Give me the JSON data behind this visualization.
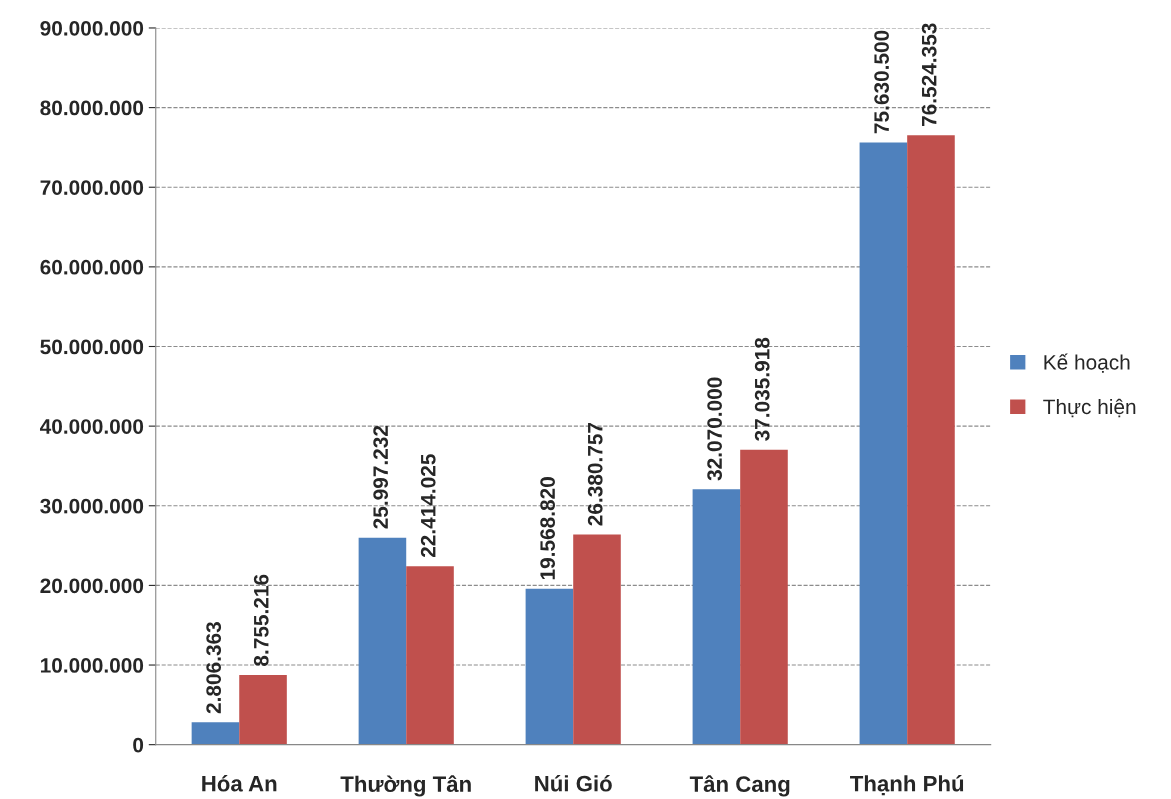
{
  "chart_data": {
    "type": "bar",
    "categories": [
      "Hóa An",
      "Thường Tân",
      "Núi Gió",
      "Tân Cang",
      "Thạnh Phú"
    ],
    "series": [
      {
        "name": "Kế hoạch",
        "color": "#4f81bd",
        "values": [
          2806363,
          25997232,
          19568820,
          32070000,
          75630500
        ],
        "value_labels": [
          "2.806.363",
          "25.997.232",
          "19.568.820",
          "32.070.000",
          "75.630.500"
        ]
      },
      {
        "name": "Thực hiện",
        "color": "#c0504d",
        "values": [
          8755216,
          22414025,
          26380757,
          37035918,
          76524353
        ],
        "value_labels": [
          "8.755.216",
          "22.414.025",
          "26.380.757",
          "37.035.918",
          "76.524.353"
        ]
      }
    ],
    "ylim": [
      0,
      90000000
    ],
    "yticks": [
      {
        "value": 0,
        "label": "0"
      },
      {
        "value": 10000000,
        "label": "10.000.000"
      },
      {
        "value": 20000000,
        "label": "20.000.000"
      },
      {
        "value": 30000000,
        "label": "30.000.000"
      },
      {
        "value": 40000000,
        "label": "40.000.000"
      },
      {
        "value": 50000000,
        "label": "50.000.000"
      },
      {
        "value": 60000000,
        "label": "60.000.000"
      },
      {
        "value": 70000000,
        "label": "70.000.000"
      },
      {
        "value": 80000000,
        "label": "80.000.000"
      },
      {
        "value": 90000000,
        "label": "90.000.000"
      }
    ],
    "grid": "y",
    "legend": "right"
  }
}
